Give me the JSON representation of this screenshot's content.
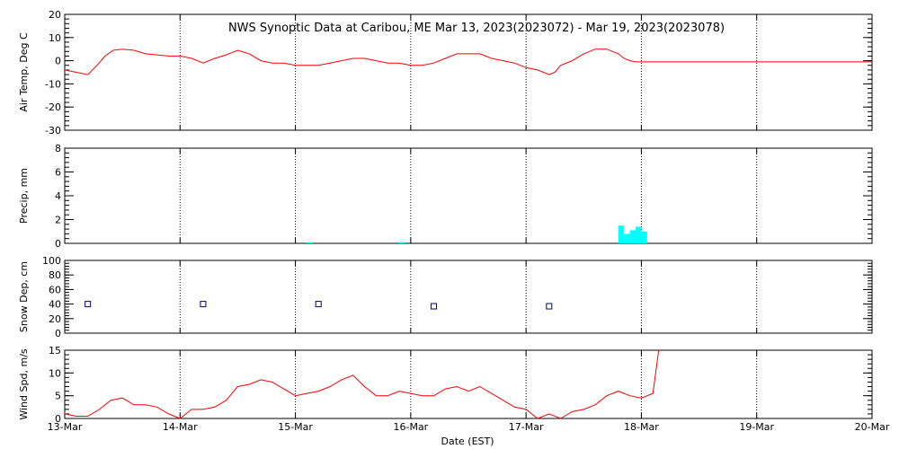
{
  "chart_data": {
    "title": "NWS Synoptic Data at Caribou, ME   Mar 13, 2023(2023072) - Mar 19, 2023(2023078)",
    "x_axis": {
      "label": "Date (EST)",
      "ticks": [
        "13-Mar",
        "14-Mar",
        "15-Mar",
        "16-Mar",
        "17-Mar",
        "18-Mar",
        "19-Mar",
        "20-Mar"
      ],
      "range_days": [
        0,
        7
      ]
    },
    "panels": [
      {
        "id": "air_temp",
        "type": "line",
        "ylabel": "Air Temp, Deg C",
        "ylim": [
          -30,
          20
        ],
        "ticks": [
          20,
          10,
          0,
          -10,
          -20,
          -30
        ],
        "color": "#ff0000",
        "series": {
          "x": [
            0,
            0.1,
            0.2,
            0.28,
            0.35,
            0.42,
            0.5,
            0.6,
            0.7,
            0.8,
            0.9,
            1.0,
            1.1,
            1.2,
            1.3,
            1.4,
            1.5,
            1.6,
            1.7,
            1.8,
            1.9,
            2.0,
            2.1,
            2.2,
            2.3,
            2.4,
            2.5,
            2.6,
            2.7,
            2.8,
            2.9,
            3.0,
            3.1,
            3.2,
            3.3,
            3.4,
            3.5,
            3.6,
            3.7,
            3.8,
            3.9,
            4.0,
            4.1,
            4.2,
            4.25,
            4.3,
            4.4,
            4.5,
            4.6,
            4.7,
            4.75,
            4.8,
            4.85,
            4.9,
            4.95,
            5.0,
            5.5,
            6.0,
            6.5,
            7.0
          ],
          "y": [
            -4,
            -5,
            -6,
            -2,
            2,
            4.5,
            5,
            4.5,
            3,
            2.5,
            2,
            2,
            1,
            -1,
            1,
            2.5,
            4.5,
            3,
            0,
            -1,
            -1,
            -2,
            -2,
            -2,
            -1,
            0,
            1,
            1,
            0,
            -1,
            -1,
            -2,
            -2,
            -1,
            1,
            3,
            3,
            3,
            1,
            0,
            -1,
            -3,
            -4,
            -6,
            -5,
            -2,
            0,
            3,
            5,
            5,
            4,
            3,
            1,
            0,
            -0.5,
            -0.5,
            -0.5,
            -0.5,
            -0.5,
            -0.5
          ]
        }
      },
      {
        "id": "precip",
        "type": "bar",
        "ylabel": "Precip, mm",
        "ylim": [
          0,
          8
        ],
        "ticks": [
          8,
          6,
          4,
          2,
          0
        ],
        "color": "#00ffff",
        "series": {
          "x": [
            2.1,
            2.9,
            4.8,
            4.85,
            4.9,
            4.95,
            5.0
          ],
          "y": [
            0.1,
            0.1,
            1.5,
            0.8,
            1.1,
            1.4,
            1.0
          ]
        }
      },
      {
        "id": "snow_depth",
        "type": "scatter",
        "ylabel": "Snow Dep, cm",
        "ylim": [
          0,
          100
        ],
        "ticks": [
          100,
          80,
          60,
          40,
          20,
          0
        ],
        "color": "#000080",
        "series": {
          "x": [
            0.2,
            1.2,
            2.2,
            3.2,
            4.2
          ],
          "y": [
            40,
            40,
            40,
            37,
            37
          ]
        }
      },
      {
        "id": "wind_speed",
        "type": "line",
        "ylabel": "Wind Spd, m/s",
        "ylim": [
          0,
          15
        ],
        "ticks": [
          15,
          10,
          5,
          0
        ],
        "color": "#ff0000",
        "series": {
          "x": [
            0,
            0.1,
            0.2,
            0.3,
            0.4,
            0.5,
            0.6,
            0.7,
            0.8,
            0.9,
            1.0,
            1.1,
            1.2,
            1.3,
            1.4,
            1.5,
            1.6,
            1.7,
            1.8,
            1.9,
            2.0,
            2.1,
            2.2,
            2.3,
            2.4,
            2.5,
            2.6,
            2.7,
            2.8,
            2.9,
            3.0,
            3.1,
            3.2,
            3.3,
            3.4,
            3.5,
            3.6,
            3.7,
            3.8,
            3.9,
            4.0,
            4.1,
            4.2,
            4.3,
            4.4,
            4.5,
            4.6,
            4.7,
            4.8,
            4.9,
            5.0,
            5.1,
            5.15
          ],
          "y": [
            1,
            0.5,
            0.5,
            2,
            4,
            4.5,
            3,
            3,
            2.5,
            1,
            0,
            2,
            2,
            2.5,
            4,
            7,
            7.5,
            8.5,
            8,
            6.5,
            5,
            5.5,
            6,
            7,
            8.5,
            9.5,
            7,
            5,
            5,
            6,
            5.5,
            5,
            5,
            6.5,
            7,
            6,
            7,
            5.5,
            4,
            2.5,
            2,
            0,
            1,
            0,
            1.5,
            2,
            3,
            5,
            6,
            5,
            4.5,
            5.5,
            15
          ]
        }
      }
    ]
  }
}
